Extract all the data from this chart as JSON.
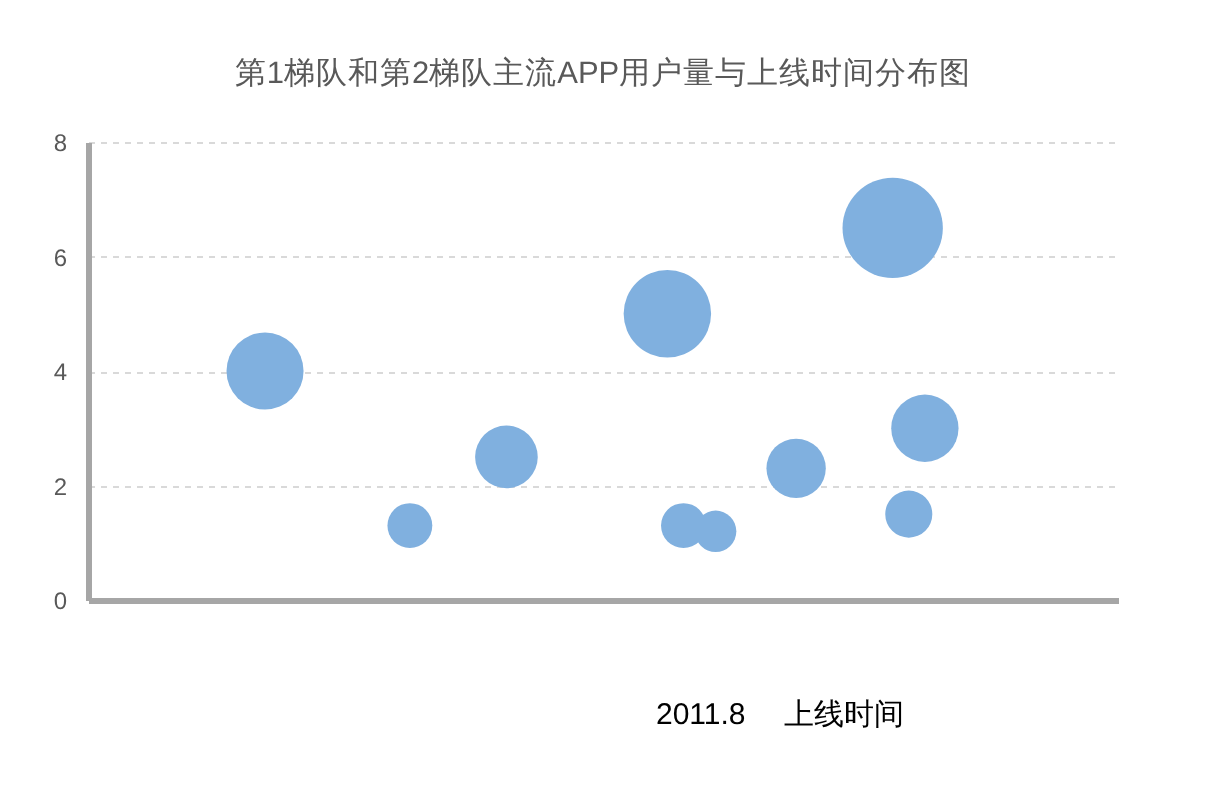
{
  "chart_data": {
    "type": "bubble",
    "title": "第1梯队和第2梯队主流APP用户量与上线时间分布图",
    "categories": [
      null,
      null,
      null,
      null,
      null,
      null,
      null,
      null,
      null,
      null,
      null,
      null,
      null,
      null,
      null,
      null,
      null,
      null,
      null,
      null,
      null,
      null,
      null,
      null,
      null,
      null,
      null,
      null,
      null,
      null,
      null,
      null,
      null,
      null,
      null,
      null,
      null,
      null,
      null,
      null,
      null,
      null,
      null,
      null,
      null,
      null,
      null,
      null,
      null,
      null,
      null,
      null,
      null,
      null,
      null,
      null,
      null,
      null,
      null,
      null,
      null,
      null,
      null,
      null,
      null
    ],
    "values": [
      null,
      null,
      null,
      null,
      null,
      null,
      null,
      null,
      null,
      null,
      null,
      4.0,
      null,
      null,
      null,
      null,
      null,
      null,
      null,
      null,
      1.3,
      null,
      null,
      null,
      null,
      null,
      2.5,
      null,
      null,
      null,
      null,
      null,
      null,
      null,
      null,
      null,
      5.0,
      1.3,
      null,
      1.2,
      null,
      null,
      null,
      null,
      2.3,
      null,
      null,
      null,
      null,
      null,
      6.5,
      1.5,
      3.0,
      null,
      null,
      null,
      null,
      null,
      null,
      null,
      null,
      null,
      null,
      null,
      null
    ],
    "sizes": [
      null,
      null,
      null,
      null,
      null,
      null,
      null,
      null,
      null,
      null,
      null,
      0.59,
      null,
      null,
      null,
      null,
      null,
      null,
      null,
      null,
      0.2,
      null,
      null,
      null,
      null,
      null,
      0.39,
      null,
      null,
      null,
      null,
      null,
      null,
      null,
      null,
      null,
      0.76,
      0.2,
      null,
      0.17,
      null,
      null,
      null,
      null,
      0.35,
      null,
      null,
      null,
      null,
      null,
      1,
      0.22,
      0.45,
      null,
      null,
      null,
      null,
      null,
      null,
      null,
      null,
      null,
      null,
      null,
      null
    ],
    "color": "#80b0df",
    "ylim": [
      0,
      8
    ],
    "yticks": [
      0,
      2,
      4,
      6,
      8
    ],
    "grid": "y",
    "tick_labels": "y",
    "annotations": [
      "2011.8",
      "上线时间"
    ]
  }
}
